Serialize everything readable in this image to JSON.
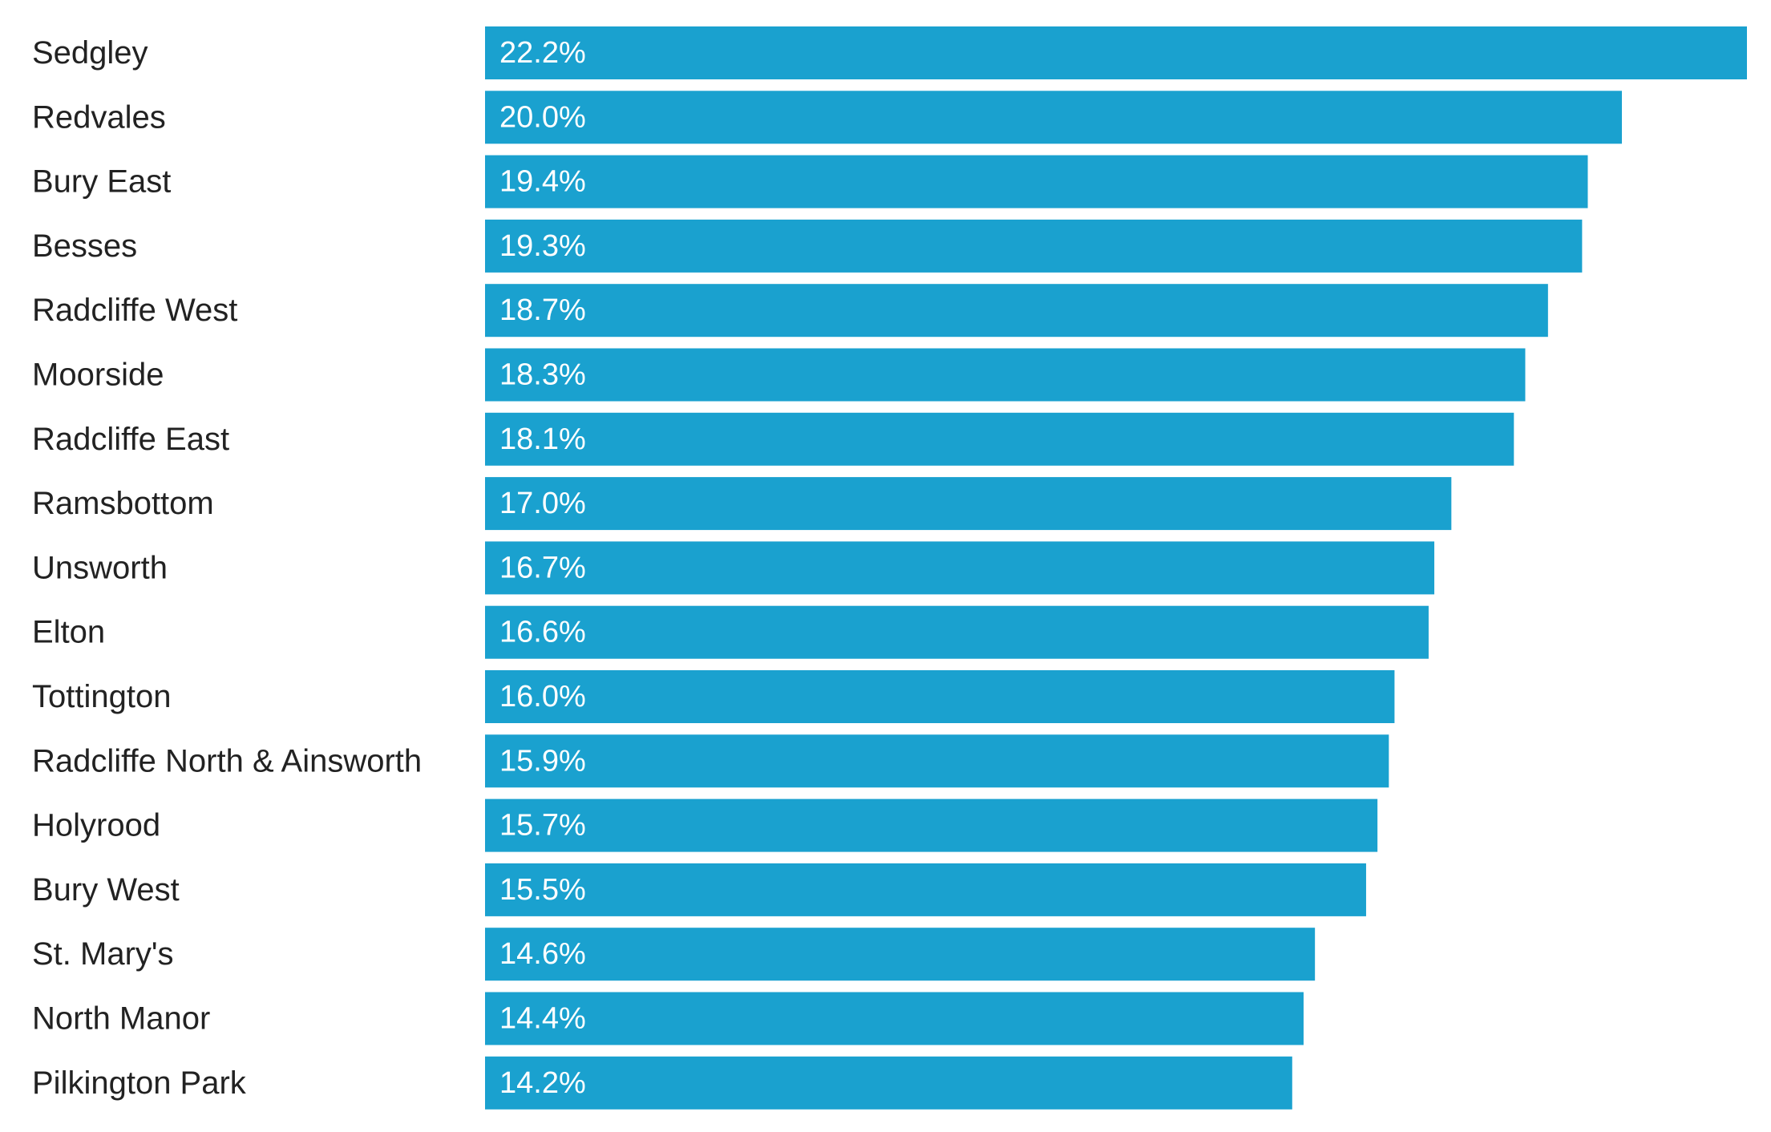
{
  "chart_data": {
    "type": "bar",
    "orientation": "horizontal",
    "categories": [
      "Sedgley",
      "Redvales",
      "Bury East",
      "Besses",
      "Radcliffe West",
      "Moorside",
      "Radcliffe East",
      "Ramsbottom",
      "Unsworth",
      "Elton",
      "Tottington",
      "Radcliffe North & Ainsworth",
      "Holyrood",
      "Bury West",
      "St. Mary's",
      "North Manor",
      "Pilkington Park"
    ],
    "values": [
      22.2,
      20.0,
      19.4,
      19.3,
      18.7,
      18.3,
      18.1,
      17.0,
      16.7,
      16.6,
      16.0,
      15.9,
      15.7,
      15.5,
      14.6,
      14.4,
      14.2
    ],
    "value_labels": [
      "22.2%",
      "20.0%",
      "19.4%",
      "19.3%",
      "18.7%",
      "18.3%",
      "18.1%",
      "17.0%",
      "16.7%",
      "16.6%",
      "16.0%",
      "15.9%",
      "15.7%",
      "15.5%",
      "14.6%",
      "14.4%",
      "14.2%"
    ],
    "xlim": [
      0,
      22.2
    ],
    "bar_color": "#1aa1cf",
    "value_label_color": "#ffffff",
    "category_label_color": "#222222",
    "grid": false,
    "legend": "none"
  }
}
